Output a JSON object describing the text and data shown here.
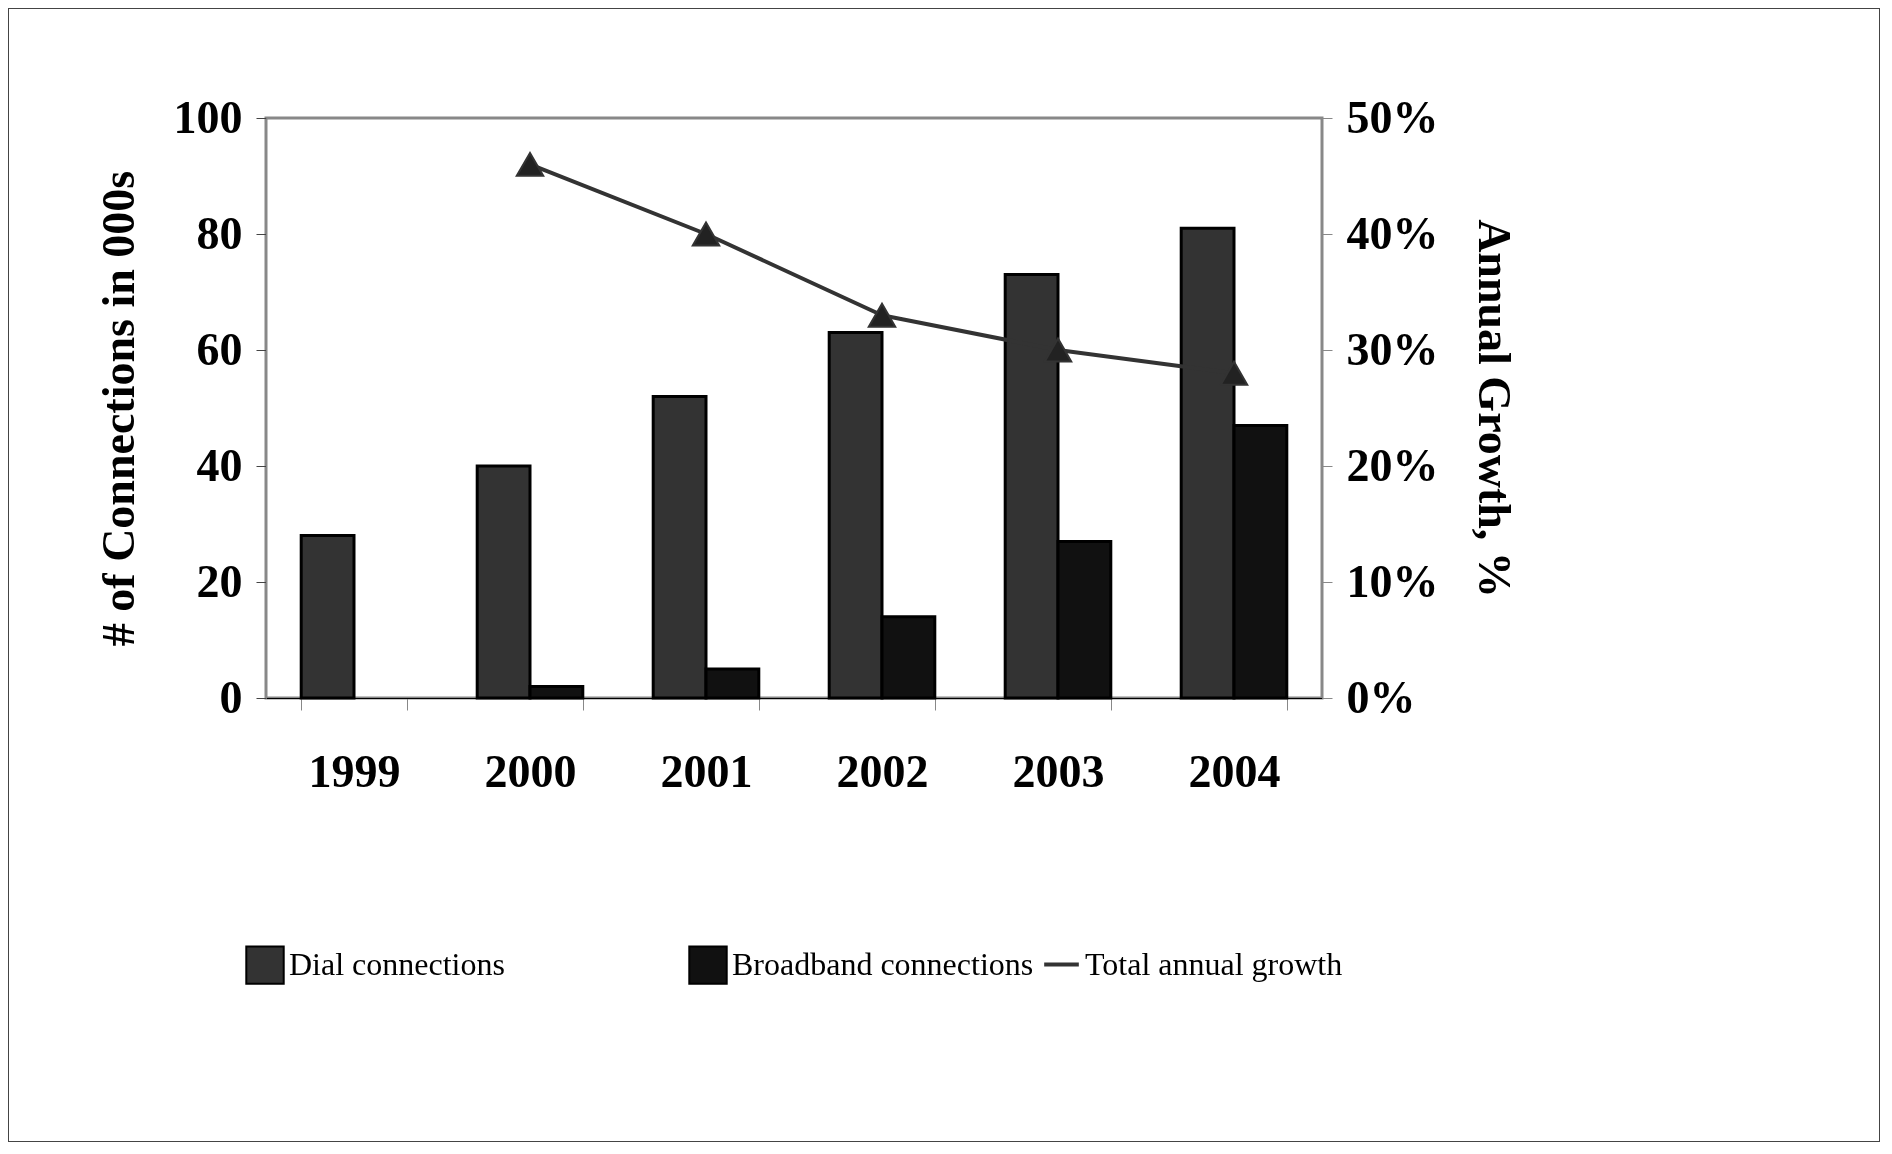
{
  "chart_data": {
    "type": "bar",
    "categories": [
      "1999",
      "2000",
      "2001",
      "2002",
      "2003",
      "2004"
    ],
    "ylabel": "# of Connections in 000s",
    "y2label": "Annual Growth, %",
    "ylim": [
      0,
      100
    ],
    "yticks": [
      0,
      20,
      40,
      60,
      80,
      100
    ],
    "y2lim": [
      0,
      50
    ],
    "y2ticks": [
      {
        "value": 0,
        "label": "0%"
      },
      {
        "value": 10,
        "label": "10%"
      },
      {
        "value": 20,
        "label": "20%"
      },
      {
        "value": 30,
        "label": "30%"
      },
      {
        "value": 40,
        "label": "40%"
      },
      {
        "value": 50,
        "label": "50%"
      }
    ],
    "series": [
      {
        "name": "Dial connections",
        "color": "#333333",
        "values": [
          28,
          40,
          52,
          63,
          73,
          81
        ]
      },
      {
        "name": "Broadband connections",
        "color": "#111111",
        "values": [
          null,
          2,
          5,
          14,
          27,
          47
        ]
      },
      {
        "name": "Total annual growth",
        "color": "#333333",
        "type": "line",
        "axis": "y2",
        "marker": "triangle",
        "values": [
          null,
          46,
          40,
          33,
          30,
          28
        ]
      }
    ],
    "grid": false,
    "legend": "bottom"
  }
}
